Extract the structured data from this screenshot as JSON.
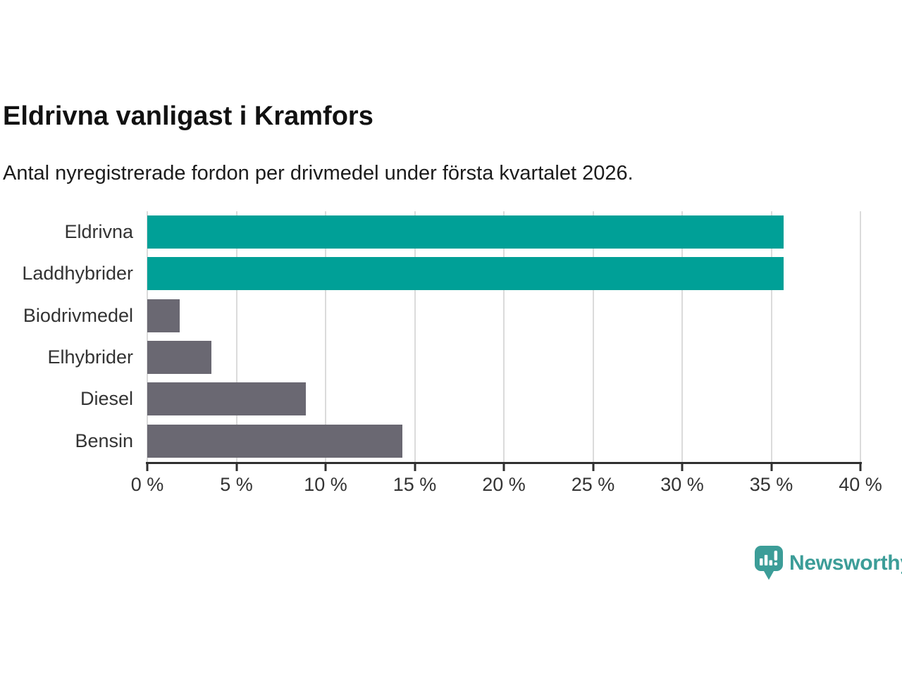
{
  "header": {
    "title": "Eldrivna vanligast i Kramfors",
    "subtitle": "Antal nyregistrerade fordon per drivmedel under första kvartalet 2026."
  },
  "chart_data": {
    "type": "bar",
    "orientation": "horizontal",
    "title": "Eldrivna vanligast i Kramfors",
    "subtitle": "Antal nyregistrerade fordon per drivmedel under första kvartalet 2026.",
    "categories": [
      "Eldrivna",
      "Laddhybrider",
      "Biodrivmedel",
      "Elhybrider",
      "Diesel",
      "Bensin"
    ],
    "values": [
      35.7,
      35.7,
      1.8,
      3.6,
      8.9,
      14.3
    ],
    "unit": "%",
    "xlim": [
      0,
      40
    ],
    "x_ticks": [
      0,
      5,
      10,
      15,
      20,
      25,
      30,
      35,
      40
    ],
    "x_tick_labels": [
      "0 %",
      "5 %",
      "10 %",
      "15 %",
      "20 %",
      "25 %",
      "30 %",
      "35 %",
      "40 %"
    ],
    "bar_colors": [
      "#00A097",
      "#00A097",
      "#6A6872",
      "#6A6872",
      "#6A6872",
      "#6A6872"
    ],
    "grid": true,
    "gridline_color": "#DBDBDB",
    "axis_color": "#2F2F2F",
    "label_color": "#333333",
    "legend": "none"
  },
  "branding": {
    "logo_text": "Newsworthy",
    "logo_color": "#3C9D98",
    "logo_icon": "speech-bubble-bar-chart-exclamation"
  }
}
